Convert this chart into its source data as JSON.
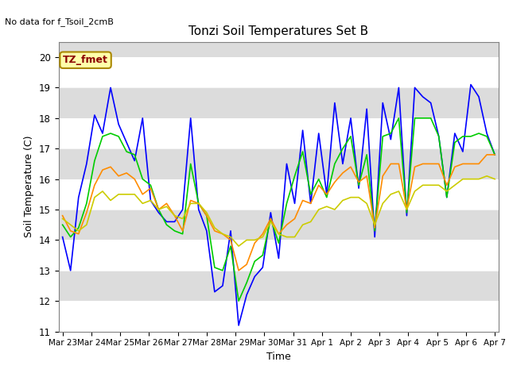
{
  "title": "Tonzi Soil Temperatures Set B",
  "xlabel": "Time",
  "ylabel": "Soil Temperature (C)",
  "no_data_label": "No data for f_Tsoil_2cmB",
  "tz_fmet_label": "TZ_fmet",
  "ylim": [
    11.0,
    20.5
  ],
  "yticks": [
    11.0,
    12.0,
    13.0,
    14.0,
    15.0,
    16.0,
    17.0,
    18.0,
    19.0,
    20.0
  ],
  "x_labels": [
    "Mar 23",
    "Mar 24",
    "Mar 25",
    "Mar 26",
    "Mar 27",
    "Mar 28",
    "Mar 29",
    "Mar 30",
    "Mar 31",
    "Apr 1",
    "Apr 2",
    "Apr 3",
    "Apr 4",
    "Apr 5",
    "Apr 6",
    "Apr 7"
  ],
  "colors": {
    "4cm": "#0000FF",
    "8cm": "#00CC00",
    "16cm": "#FF8C00",
    "32cm": "#CCCC00",
    "bg_plot": "#DCDCDC",
    "box_fill": "#FFFFAA",
    "box_edge": "#AA8800"
  },
  "data_4cm": [
    14.1,
    13.0,
    15.4,
    16.5,
    18.1,
    17.5,
    19.0,
    17.8,
    17.2,
    16.6,
    18.0,
    15.3,
    14.9,
    14.6,
    14.6,
    15.0,
    18.0,
    15.0,
    14.3,
    12.3,
    12.5,
    14.3,
    11.2,
    12.2,
    12.8,
    13.1,
    14.9,
    13.4,
    16.5,
    15.2,
    17.6,
    15.2,
    17.5,
    15.5,
    18.5,
    16.5,
    18.0,
    15.7,
    18.3,
    14.1,
    18.5,
    17.3,
    19.0,
    14.8,
    19.0,
    18.7,
    18.5,
    17.4,
    15.4,
    17.5,
    16.9,
    19.1,
    18.7,
    17.5,
    16.8
  ],
  "data_8cm": [
    14.5,
    14.1,
    14.4,
    15.2,
    16.6,
    17.4,
    17.5,
    17.4,
    16.9,
    16.8,
    16.0,
    15.8,
    15.0,
    14.5,
    14.3,
    14.2,
    16.5,
    15.2,
    14.8,
    13.1,
    13.0,
    13.8,
    12.0,
    12.6,
    13.3,
    13.5,
    14.7,
    13.9,
    15.2,
    16.1,
    16.9,
    15.5,
    16.0,
    15.4,
    16.5,
    17.0,
    17.4,
    15.8,
    16.8,
    14.3,
    17.4,
    17.5,
    18.0,
    14.9,
    18.0,
    18.0,
    18.0,
    17.4,
    15.4,
    17.2,
    17.4,
    17.4,
    17.5,
    17.4,
    16.8
  ],
  "data_16cm": [
    14.8,
    14.3,
    14.2,
    14.9,
    15.8,
    16.3,
    16.4,
    16.1,
    16.2,
    16.0,
    15.5,
    15.7,
    15.0,
    15.2,
    14.8,
    14.3,
    15.3,
    15.2,
    14.8,
    14.3,
    14.2,
    14.0,
    13.0,
    13.2,
    13.9,
    14.2,
    14.7,
    14.2,
    14.5,
    14.7,
    15.3,
    15.2,
    15.8,
    15.5,
    15.9,
    16.2,
    16.4,
    15.9,
    16.1,
    14.4,
    16.1,
    16.5,
    16.5,
    15.0,
    16.4,
    16.5,
    16.5,
    16.5,
    15.8,
    16.4,
    16.5,
    16.5,
    16.5,
    16.8,
    16.8
  ],
  "data_32cm": [
    14.7,
    14.5,
    14.3,
    14.5,
    15.4,
    15.6,
    15.3,
    15.5,
    15.5,
    15.5,
    15.2,
    15.3,
    15.0,
    15.1,
    14.8,
    14.7,
    15.2,
    15.2,
    14.9,
    14.4,
    14.2,
    14.1,
    13.8,
    14.0,
    14.0,
    14.1,
    14.6,
    14.2,
    14.1,
    14.1,
    14.5,
    14.6,
    15.0,
    15.1,
    15.0,
    15.3,
    15.4,
    15.4,
    15.2,
    14.5,
    15.2,
    15.5,
    15.6,
    15.0,
    15.6,
    15.8,
    15.8,
    15.8,
    15.6,
    15.8,
    16.0,
    16.0,
    16.0,
    16.1,
    16.0
  ]
}
